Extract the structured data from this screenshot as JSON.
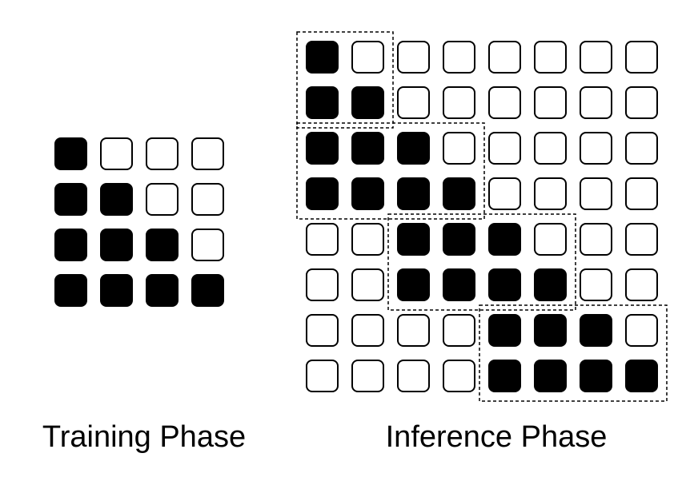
{
  "training": {
    "caption": "Training Phase",
    "grid": [
      [
        1,
        0,
        0,
        0
      ],
      [
        1,
        1,
        0,
        0
      ],
      [
        1,
        1,
        1,
        0
      ],
      [
        1,
        1,
        1,
        1
      ]
    ]
  },
  "inference": {
    "caption": "Inference Phase",
    "grid": [
      [
        1,
        0,
        0,
        0,
        0,
        0,
        0,
        0
      ],
      [
        1,
        1,
        0,
        0,
        0,
        0,
        0,
        0
      ],
      [
        1,
        1,
        1,
        0,
        0,
        0,
        0,
        0
      ],
      [
        1,
        1,
        1,
        1,
        0,
        0,
        0,
        0
      ],
      [
        0,
        0,
        1,
        1,
        1,
        0,
        0,
        0
      ],
      [
        0,
        0,
        1,
        1,
        1,
        1,
        0,
        0
      ],
      [
        0,
        0,
        0,
        0,
        1,
        1,
        1,
        0
      ],
      [
        0,
        0,
        0,
        0,
        1,
        1,
        1,
        1
      ]
    ],
    "windows": [
      {
        "rows": [
          0,
          1
        ],
        "cols": [
          0,
          1
        ]
      },
      {
        "rows": [
          2,
          3
        ],
        "cols": [
          0,
          3
        ]
      },
      {
        "rows": [
          4,
          5
        ],
        "cols": [
          2,
          5
        ]
      },
      {
        "rows": [
          6,
          7
        ],
        "cols": [
          4,
          7
        ]
      }
    ]
  },
  "colors": {
    "filled": "#000000",
    "empty": "#ffffff",
    "stroke": "#000000"
  }
}
